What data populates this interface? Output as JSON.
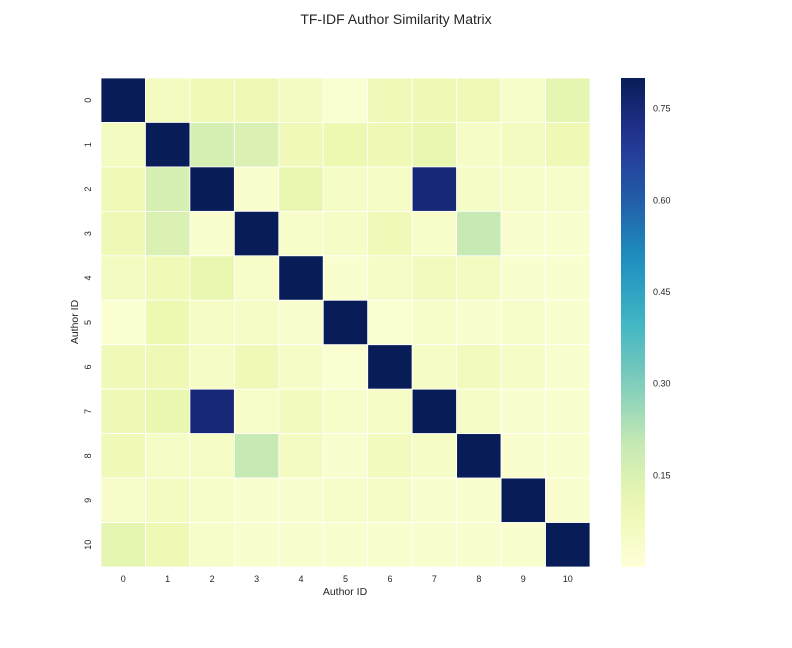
{
  "chart_data": {
    "type": "heatmap",
    "title": "TF-IDF Author Similarity Matrix",
    "xlabel": "Author ID",
    "ylabel": "Author ID",
    "x_categories": [
      "0",
      "1",
      "2",
      "3",
      "4",
      "5",
      "6",
      "7",
      "8",
      "9",
      "10"
    ],
    "y_categories": [
      "0",
      "1",
      "2",
      "3",
      "4",
      "5",
      "6",
      "7",
      "8",
      "9",
      "10"
    ],
    "colormap": "YlGnBu",
    "value_range": [
      0.0,
      0.8
    ],
    "grid": true,
    "colorbar": {
      "position": "right",
      "ticks": [
        0.15,
        0.3,
        0.45,
        0.6,
        0.75
      ],
      "tick_labels": [
        "0.15",
        "0.30",
        "0.45",
        "0.60",
        "0.75"
      ]
    },
    "values": [
      [
        0.8,
        0.06,
        0.08,
        0.09,
        0.06,
        0.02,
        0.08,
        0.09,
        0.08,
        0.04,
        0.12
      ],
      [
        0.06,
        0.8,
        0.16,
        0.15,
        0.08,
        0.1,
        0.09,
        0.11,
        0.05,
        0.06,
        0.09
      ],
      [
        0.08,
        0.16,
        0.8,
        0.03,
        0.11,
        0.05,
        0.05,
        0.75,
        0.05,
        0.04,
        0.04
      ],
      [
        0.09,
        0.15,
        0.03,
        0.8,
        0.04,
        0.05,
        0.08,
        0.04,
        0.2,
        0.03,
        0.03
      ],
      [
        0.06,
        0.08,
        0.11,
        0.04,
        0.8,
        0.03,
        0.05,
        0.07,
        0.06,
        0.03,
        0.03
      ],
      [
        0.02,
        0.1,
        0.05,
        0.05,
        0.03,
        0.8,
        0.02,
        0.04,
        0.03,
        0.04,
        0.03
      ],
      [
        0.08,
        0.09,
        0.05,
        0.08,
        0.05,
        0.02,
        0.8,
        0.05,
        0.07,
        0.05,
        0.03
      ],
      [
        0.09,
        0.11,
        0.75,
        0.04,
        0.07,
        0.04,
        0.05,
        0.8,
        0.05,
        0.03,
        0.03
      ],
      [
        0.08,
        0.05,
        0.05,
        0.2,
        0.06,
        0.03,
        0.07,
        0.05,
        0.8,
        0.03,
        0.03
      ],
      [
        0.04,
        0.06,
        0.04,
        0.03,
        0.03,
        0.04,
        0.05,
        0.03,
        0.03,
        0.8,
        0.03
      ],
      [
        0.12,
        0.09,
        0.04,
        0.03,
        0.03,
        0.03,
        0.03,
        0.03,
        0.03,
        0.03,
        0.8
      ]
    ]
  }
}
